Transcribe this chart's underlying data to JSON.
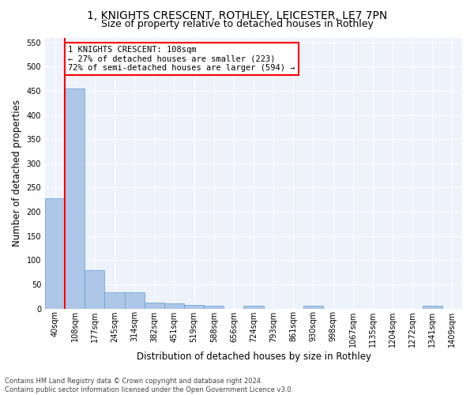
{
  "title_line1": "1, KNIGHTS CRESCENT, ROTHLEY, LEICESTER, LE7 7PN",
  "title_line2": "Size of property relative to detached houses in Rothley",
  "xlabel": "Distribution of detached houses by size in Rothley",
  "ylabel": "Number of detached properties",
  "footnote": "Contains HM Land Registry data © Crown copyright and database right 2024.\nContains public sector information licensed under the Open Government Licence v3.0.",
  "bin_labels": [
    "40sqm",
    "108sqm",
    "177sqm",
    "245sqm",
    "314sqm",
    "382sqm",
    "451sqm",
    "519sqm",
    "588sqm",
    "656sqm",
    "724sqm",
    "793sqm",
    "861sqm",
    "930sqm",
    "998sqm",
    "1067sqm",
    "1135sqm",
    "1204sqm",
    "1272sqm",
    "1341sqm",
    "1409sqm"
  ],
  "bar_heights": [
    228,
    454,
    80,
    33,
    33,
    12,
    10,
    7,
    5,
    0,
    5,
    0,
    0,
    5,
    0,
    0,
    0,
    0,
    0,
    5,
    0
  ],
  "bar_color": "#aec6e8",
  "bar_edge_color": "#5a9fd4",
  "vline_x": 1,
  "vline_color": "red",
  "annotation_text": "1 KNIGHTS CRESCENT: 108sqm\n← 27% of detached houses are smaller (223)\n72% of semi-detached houses are larger (594) →",
  "annotation_box_color": "white",
  "annotation_box_edge": "red",
  "ylim": [
    0,
    560
  ],
  "yticks": [
    0,
    50,
    100,
    150,
    200,
    250,
    300,
    350,
    400,
    450,
    500,
    550
  ],
  "bg_color": "#eef2fb",
  "grid_color": "white",
  "title_fontsize": 10,
  "subtitle_fontsize": 9,
  "axis_label_fontsize": 8.5,
  "tick_fontsize": 7,
  "annotation_fontsize": 7.5,
  "footnote_fontsize": 6
}
